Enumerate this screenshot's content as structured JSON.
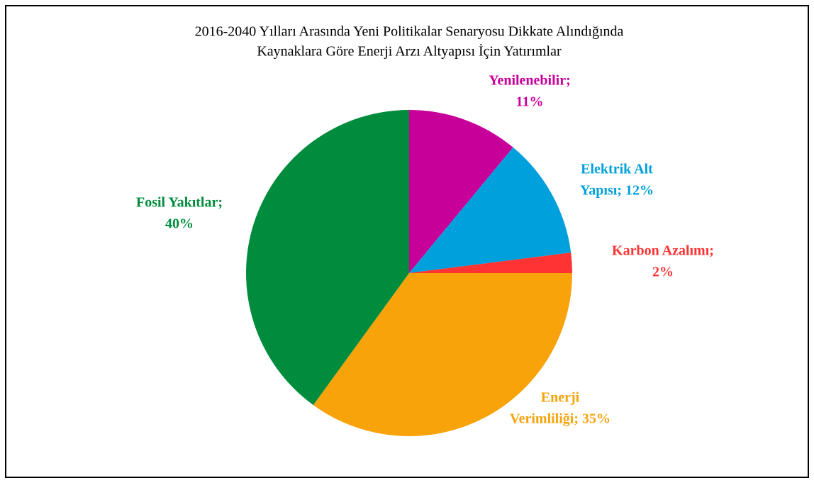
{
  "chart_data": {
    "type": "pie",
    "title": [
      "2016-2040 Yılları Arasında Yeni Politikalar Senaryosu Dikkate Alındığında",
      "Kaynaklara Göre Enerji Arzı Altyapısı İçin Yatırımlar"
    ],
    "values": [
      11,
      12,
      2,
      35,
      40
    ],
    "value_labels": [
      [
        "Yenilenebilir;",
        "11%"
      ],
      [
        "Elektrik Alt",
        "Yapısı; 12%"
      ],
      [
        "Karbon Azalımı;",
        "2%"
      ],
      [
        "Enerji",
        "Verimliliği; 35%"
      ],
      [
        "Fosil Yakıtlar;",
        "40%"
      ]
    ],
    "colors": [
      "#c8009a",
      "#00a0dc",
      "#ff3333",
      "#f8a30a",
      "#008c3c"
    ]
  }
}
